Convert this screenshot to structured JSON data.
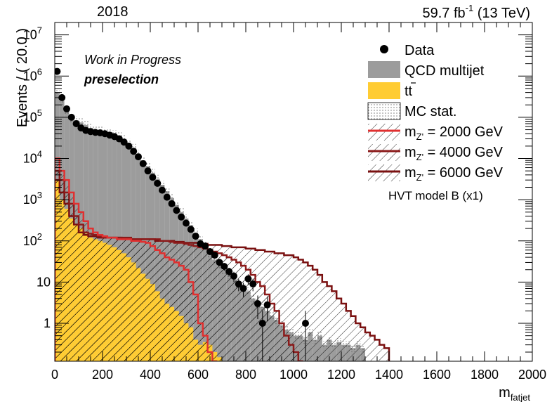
{
  "header": {
    "year": "2018",
    "lumi": "59.7 fb",
    "lumi_exp": "-1",
    "energy": "(13 TeV)",
    "status": "Work in Progress",
    "selection": "preselection"
  },
  "axes": {
    "ylabel": "Events / ( 20.0 )",
    "xlabel": "m",
    "xlabel_sub": "fatjet"
  },
  "legend": {
    "data": "Data",
    "qcd": "QCD multijet",
    "ttbar": "tt",
    "mcstat": "MC stat.",
    "sig_prefix": "m",
    "sig_sub": "Z'",
    "sig1": " = 2000 GeV",
    "sig2": " = 4000 GeV",
    "sig3": " = 6000 GeV",
    "model": "HVT model B (x1)"
  },
  "colors": {
    "qcd": "#9c9c9c",
    "ttbar": "#ffcc33",
    "sig1": "#e03030",
    "sig2": "#8b1a1a",
    "sig3": "#7a1010"
  },
  "chart_data": {
    "type": "histogram",
    "log_y": true,
    "xlim": [
      0,
      2000
    ],
    "ylim": [
      0.12,
      20000000
    ],
    "bin_width": 20,
    "x_ticks": [
      0,
      200,
      400,
      600,
      800,
      1000,
      1200,
      1400,
      1600,
      1800,
      2000
    ],
    "y_ticks": [
      {
        "v": 1,
        "t": "1"
      },
      {
        "v": 10,
        "t": "10"
      },
      {
        "v": 100,
        "t": "10",
        "e": "2"
      },
      {
        "v": 1000,
        "t": "10",
        "e": "3"
      },
      {
        "v": 10000,
        "t": "10",
        "e": "4"
      },
      {
        "v": 100000,
        "t": "10",
        "e": "5"
      },
      {
        "v": 1000000,
        "t": "10",
        "e": "6"
      },
      {
        "v": 10000000,
        "t": "10",
        "e": "7"
      }
    ],
    "data_points": [
      [
        10,
        1300000
      ],
      [
        30,
        300000
      ],
      [
        50,
        160000
      ],
      [
        70,
        100000
      ],
      [
        90,
        70000
      ],
      [
        110,
        55000
      ],
      [
        130,
        48000
      ],
      [
        150,
        45000
      ],
      [
        170,
        43000
      ],
      [
        190,
        42000
      ],
      [
        210,
        40000
      ],
      [
        230,
        37000
      ],
      [
        250,
        34000
      ],
      [
        270,
        30000
      ],
      [
        290,
        25000
      ],
      [
        310,
        20000
      ],
      [
        330,
        15000
      ],
      [
        350,
        11000
      ],
      [
        370,
        7500
      ],
      [
        390,
        5000
      ],
      [
        410,
        3500
      ],
      [
        430,
        2500
      ],
      [
        450,
        1700
      ],
      [
        470,
        1150
      ],
      [
        490,
        800
      ],
      [
        510,
        550
      ],
      [
        530,
        380
      ],
      [
        550,
        270
      ],
      [
        570,
        190
      ],
      [
        590,
        130
      ],
      [
        610,
        85
      ],
      [
        630,
        75
      ],
      [
        650,
        55
      ],
      [
        670,
        45
      ],
      [
        690,
        30
      ],
      [
        710,
        24
      ],
      [
        730,
        18
      ],
      [
        750,
        14
      ],
      [
        770,
        9
      ],
      [
        790,
        7
      ],
      [
        810,
        12
      ],
      [
        830,
        9
      ],
      [
        850,
        3
      ],
      [
        870,
        1
      ],
      [
        890,
        2.8
      ],
      [
        1050,
        1
      ]
    ],
    "qcd_ttbar_total": [
      400000,
      250000,
      150000,
      95000,
      85000,
      75000,
      65000,
      55000,
      50000,
      47000,
      45000,
      42000,
      39000,
      35000,
      30000,
      24000,
      18000,
      13000,
      9000,
      6500,
      4500,
      3200,
      2300,
      1600,
      1100,
      750,
      500,
      350,
      240,
      160,
      110,
      75,
      50,
      35,
      25,
      20,
      15,
      12,
      9,
      7,
      6,
      4,
      3,
      2.5,
      2,
      1.5,
      1.2,
      0.9,
      0.7,
      0.6,
      0.5,
      0.5,
      0.4,
      0.6,
      0.4,
      0.5,
      0.3,
      0.4,
      0.3,
      0.35,
      0.3,
      0.3,
      0.25,
      0.3,
      0.25
    ],
    "ttbar": [
      3000,
      1000,
      600,
      350,
      250,
      200,
      150,
      120,
      110,
      100,
      90,
      80,
      70,
      60,
      50,
      40,
      30,
      22,
      16,
      12,
      9,
      6,
      4,
      3,
      2.5,
      2,
      1.5,
      1,
      0.8,
      0.4,
      0.3,
      0.35,
      0.3,
      0.2,
      0.15
    ],
    "signal_m2000": [
      10000,
      5000,
      3000,
      1500,
      800,
      500,
      300,
      200,
      160,
      140,
      130,
      120,
      120,
      110,
      110,
      110,
      100,
      100,
      95,
      90,
      75,
      60,
      50,
      40,
      35,
      30,
      25,
      20,
      10,
      5,
      1,
      0.5,
      0.2,
      0.1
    ],
    "signal_m4000": [
      5000,
      3000,
      1500,
      800,
      400,
      250,
      160,
      150,
      140,
      130,
      120,
      120,
      120,
      120,
      120,
      120,
      110,
      110,
      110,
      110,
      110,
      110,
      100,
      100,
      95,
      90,
      90,
      85,
      80,
      75,
      70,
      65,
      60,
      55,
      50,
      45,
      40,
      35,
      30,
      25,
      20,
      15,
      10,
      8,
      5,
      3,
      2,
      1,
      0.5,
      0.3,
      0.2,
      0.1
    ],
    "signal_m6000": [
      3000,
      1500,
      800,
      400,
      250,
      160,
      140,
      130,
      130,
      120,
      120,
      120,
      120,
      120,
      110,
      110,
      110,
      110,
      110,
      110,
      110,
      100,
      100,
      100,
      100,
      95,
      95,
      90,
      90,
      90,
      85,
      85,
      80,
      80,
      80,
      75,
      75,
      70,
      70,
      70,
      65,
      65,
      60,
      60,
      55,
      55,
      50,
      50,
      45,
      45,
      40,
      35,
      30,
      25,
      20,
      15,
      10,
      8,
      6,
      4,
      3,
      2,
      1.5,
      1,
      0.8,
      0.6,
      0.5,
      0.4,
      0.3,
      0.25
    ]
  }
}
